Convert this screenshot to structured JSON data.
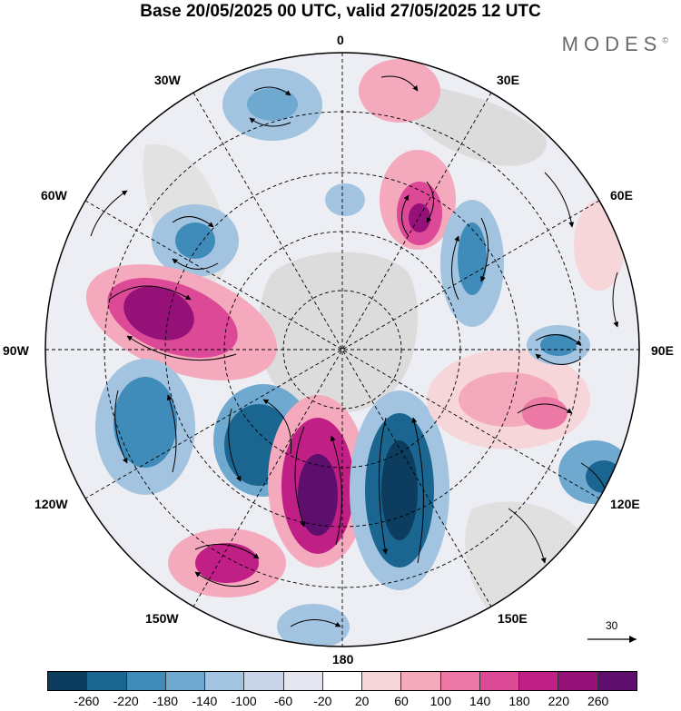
{
  "title": "Base 20/05/2025 00 UTC, valid 27/05/2025 12 UTC",
  "brand": "MODES",
  "brand_mark": "©",
  "longitude_labels": {
    "lon_0": "0",
    "lon_30e": "30E",
    "lon_60e": "60E",
    "lon_90e": "90E",
    "lon_120e": "120E",
    "lon_150e": "150E",
    "lon_180": "180",
    "lon_150w": "150W",
    "lon_120w": "120W",
    "lon_90w": "90W",
    "lon_60w": "60W",
    "lon_30w": "30W"
  },
  "reference_vector": "30",
  "colorbar": {
    "colors": [
      "#0d3d5e",
      "#1a6690",
      "#3f8bba",
      "#6fa9cf",
      "#a3c4e0",
      "#c9d4e8",
      "#e6e6f0",
      "#ffffff",
      "#f7d6d9",
      "#f4a9bd",
      "#ec78a6",
      "#dc4996",
      "#c01f86",
      "#951178",
      "#5e0f6e"
    ],
    "ticks": [
      "-260",
      "-220",
      "-180",
      "-140",
      "-100",
      "-60",
      "-20",
      "20",
      "60",
      "100",
      "140",
      "180",
      "220",
      "260"
    ]
  }
}
